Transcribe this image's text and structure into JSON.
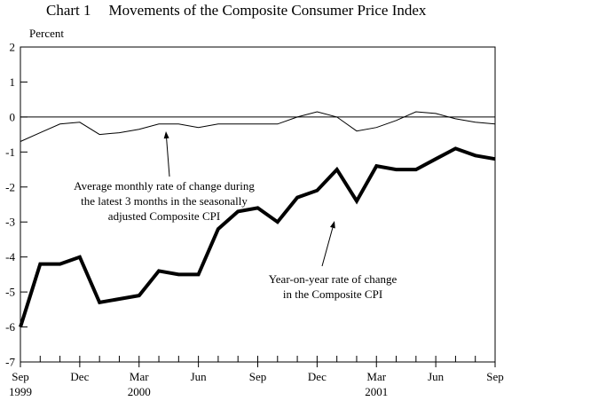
{
  "header": {
    "chart_label": "Chart 1",
    "title": "Movements of the Composite Consumer Price Index"
  },
  "colors": {
    "line": "#000000",
    "background": "#ffffff",
    "text": "#000000"
  },
  "chart_data": {
    "type": "line",
    "title": "Chart 1  Movements of the Composite Consumer Price Index",
    "ylabel": "Percent",
    "ylim": [
      -7,
      2
    ],
    "y_ticks": [
      "2",
      "1",
      "0",
      "-1",
      "-2",
      "-3",
      "-4",
      "-5",
      "-6",
      "-7"
    ],
    "zero_line": true,
    "grid": false,
    "border": "box",
    "legend_position": "in-plot-annotations",
    "months": [
      "Sep-1999",
      "Oct-1999",
      "Nov-1999",
      "Dec-1999",
      "Jan-2000",
      "Feb-2000",
      "Mar-2000",
      "Apr-2000",
      "May-2000",
      "Jun-2000",
      "Jul-2000",
      "Aug-2000",
      "Sep-2000",
      "Oct-2000",
      "Nov-2000",
      "Dec-2000",
      "Jan-2001",
      "Feb-2001",
      "Mar-2001",
      "Apr-2001",
      "May-2001",
      "Jun-2001",
      "Jul-2001",
      "Aug-2001",
      "Sep-2001"
    ],
    "x_axis_labels": [
      {
        "month_index": 0,
        "label": "Sep",
        "year": "1999"
      },
      {
        "month_index": 3,
        "label": "Dec"
      },
      {
        "month_index": 6,
        "label": "Mar",
        "year": "2000"
      },
      {
        "month_index": 9,
        "label": "Jun"
      },
      {
        "month_index": 12,
        "label": "Sep"
      },
      {
        "month_index": 15,
        "label": "Dec"
      },
      {
        "month_index": 18,
        "label": "Mar",
        "year": "2001"
      },
      {
        "month_index": 21,
        "label": "Jun"
      },
      {
        "month_index": 24,
        "label": "Sep"
      }
    ],
    "series": [
      {
        "name": "Year-on-year rate of change in the Composite CPI",
        "style": "thick",
        "values": [
          -6.0,
          -4.2,
          -4.2,
          -4.0,
          -5.3,
          -5.2,
          -5.1,
          -4.4,
          -4.5,
          -4.5,
          -3.2,
          -2.7,
          -2.6,
          -3.0,
          -2.3,
          -2.1,
          -1.5,
          -2.4,
          -1.4,
          -1.5,
          -1.5,
          -1.2,
          -0.9,
          -1.1,
          -1.2
        ]
      },
      {
        "name": "Average monthly rate of change during the latest 3 months in the seasonally adjusted Composite CPI",
        "style": "thin",
        "values": [
          -0.7,
          -0.45,
          -0.2,
          -0.15,
          -0.5,
          -0.45,
          -0.35,
          -0.2,
          -0.2,
          -0.3,
          -0.2,
          -0.2,
          -0.2,
          -0.2,
          0.0,
          0.15,
          0.0,
          -0.4,
          -0.3,
          -0.1,
          0.15,
          0.1,
          -0.05,
          -0.15,
          -0.2
        ]
      }
    ]
  },
  "annotations": {
    "avg_monthly": {
      "lines": [
        "Average monthly rate of change during",
        "the latest 3 months in the seasonally",
        "adjusted Composite CPI"
      ],
      "arrow": {
        "from": [
          191,
          199
        ],
        "to": [
          187,
          148
        ]
      }
    },
    "yoy": {
      "lines": [
        "Year-on-year rate of change",
        "in the Composite CPI"
      ],
      "arrow": {
        "from": [
          363,
          300
        ],
        "to": [
          377,
          249
        ]
      }
    }
  }
}
